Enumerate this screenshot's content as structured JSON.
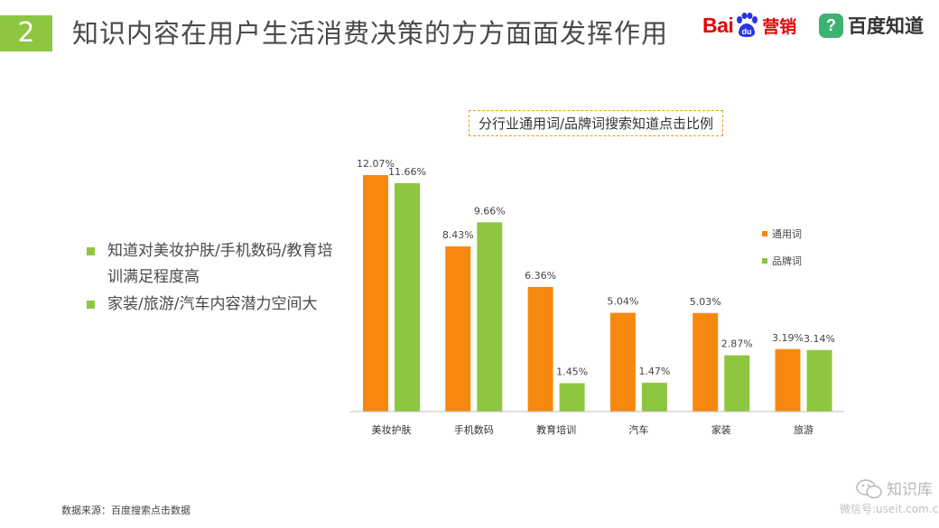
{
  "header": {
    "slide_number": "2",
    "title": "知识内容在用户生活消费决策的方方面面发挥作用",
    "logo_baidu_text": "Bai",
    "logo_du_text": "du",
    "logo_marketing_text": "营销",
    "logo_zhidao_text": "百度知道"
  },
  "bullets": [
    "知道对美妆护肤/手机数码/教育培训满足程度高",
    "家装/旅游/汽车内容潜力空间大"
  ],
  "chart_data": {
    "type": "bar",
    "title": "分行业通用词/品牌词搜索知道点击比例",
    "categories": [
      "美妆护肤",
      "手机数码",
      "教育培训",
      "汽车",
      "家装",
      "旅游"
    ],
    "series": [
      {
        "name": "通用词",
        "values": [
          12.07,
          8.43,
          6.36,
          5.04,
          5.03,
          3.19
        ],
        "labels": [
          "12.07%",
          "8.43%",
          "6.36%",
          "5.04%",
          "5.03%",
          "3.19%"
        ],
        "color": "#f7880f"
      },
      {
        "name": "品牌词",
        "values": [
          11.66,
          9.66,
          1.45,
          1.47,
          2.87,
          3.14
        ],
        "labels": [
          "11.66%",
          "9.66%",
          "1.45%",
          "1.47%",
          "2.87%",
          "3.14%"
        ],
        "color": "#8dc63f"
      }
    ],
    "ylim": [
      0,
      12.6
    ],
    "legend_position": "right",
    "grid": false
  },
  "footer": {
    "source": "数据来源：百度搜索点击数据",
    "wechat_name": "知识库",
    "wechat_id": "微信号:useit.com.cn"
  },
  "colors": {
    "accent_green": "#8dc63f",
    "accent_orange": "#f7880f",
    "baidu_red": "#e10602",
    "baidu_blue": "#2932e1"
  }
}
